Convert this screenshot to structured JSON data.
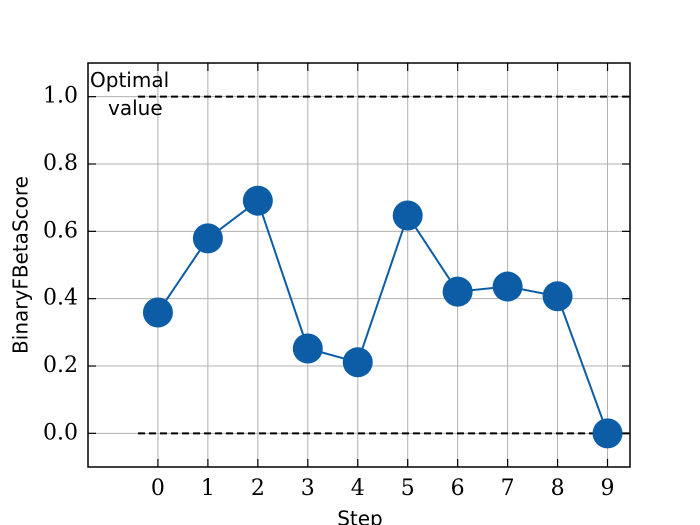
{
  "chart_data": {
    "type": "line",
    "x_label": "Step",
    "y_label": "BinaryFBetaScore",
    "x": [
      0,
      1,
      2,
      3,
      4,
      5,
      6,
      7,
      8,
      9
    ],
    "series": [
      {
        "color": "#0c5da5",
        "values": [
          0.359,
          0.579,
          0.691,
          0.252,
          0.211,
          0.647,
          0.421,
          0.436,
          0.407,
          0.0
        ]
      }
    ],
    "xlim": [
      -1.4,
      9.45
    ],
    "xticks": [
      0,
      1,
      2,
      3,
      4,
      5,
      6,
      7,
      8,
      9
    ],
    "ylim": [
      -0.1,
      1.1
    ],
    "yticks": [
      {
        "value": 0,
        "label": "0.0"
      },
      {
        "value": 0.2,
        "label": "0.2"
      },
      {
        "value": 0.4,
        "label": "0.4"
      },
      {
        "value": 0.6,
        "label": "0.6"
      },
      {
        "value": 0.8,
        "label": "0.8"
      },
      {
        "value": 1,
        "label": "1.0"
      }
    ],
    "reference_lines": [
      1,
      0
    ],
    "annotation": "Optimal\nvalue",
    "grid": true
  }
}
